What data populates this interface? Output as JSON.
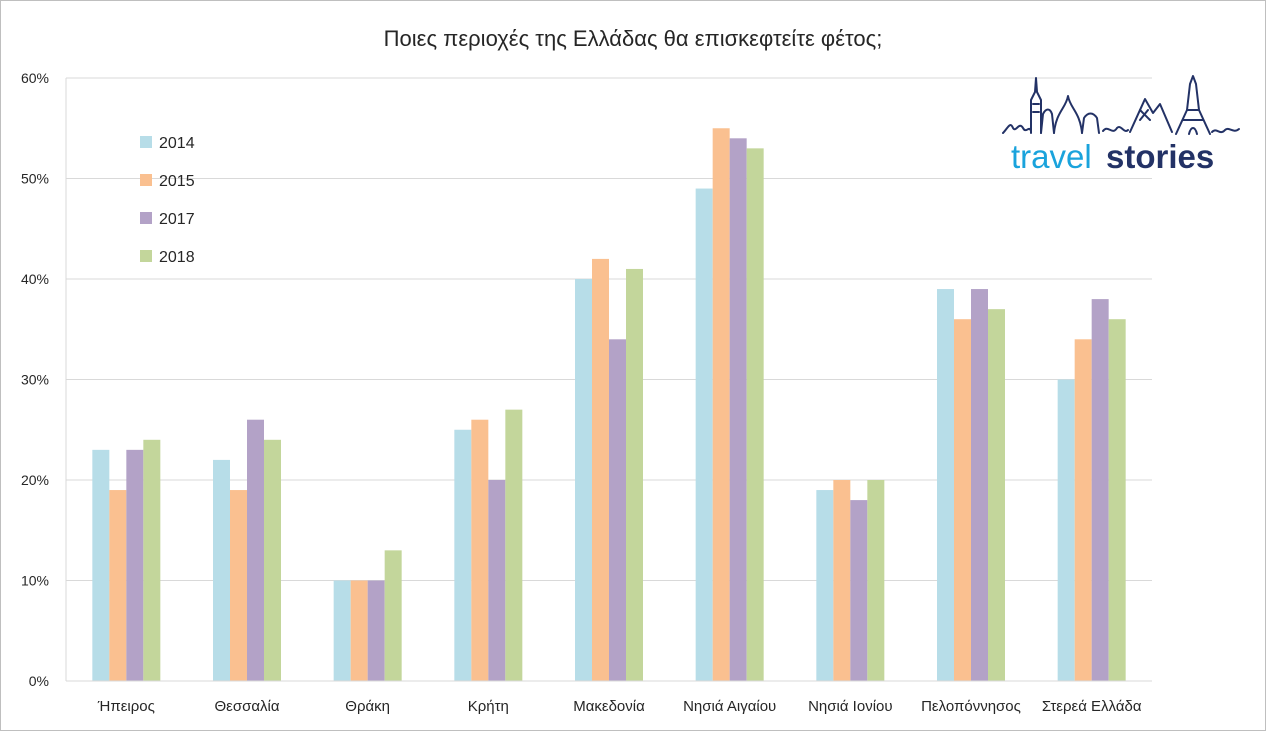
{
  "chart_data": {
    "type": "bar",
    "title": "Ποιες περιοχές της Ελλάδας θα επισκεφτείτε φέτος;",
    "xlabel": "",
    "ylabel": "",
    "ylim": [
      0,
      60
    ],
    "y_ticks": [
      "0%",
      "10%",
      "20%",
      "30%",
      "40%",
      "50%",
      "60%"
    ],
    "grid": true,
    "legend_position": "top-left",
    "categories": [
      "Ήπειρος",
      "Θεσσαλία",
      "Θράκη",
      "Κρήτη",
      "Μακεδονία",
      "Νησιά Αιγαίου",
      "Νησιά Ιονίου",
      "Πελοπόννησος",
      "Στερεά Ελλάδα"
    ],
    "series": [
      {
        "name": "2014",
        "color": "#b7dde8",
        "values": [
          23,
          22,
          10,
          25,
          40,
          49,
          19,
          39,
          30
        ]
      },
      {
        "name": "2015",
        "color": "#fac090",
        "values": [
          19,
          19,
          10,
          26,
          42,
          55,
          20,
          36,
          34
        ]
      },
      {
        "name": "2017",
        "color": "#b3a2c7",
        "values": [
          23,
          26,
          10,
          20,
          34,
          54,
          18,
          39,
          38
        ]
      },
      {
        "name": "2018",
        "color": "#c3d69b",
        "values": [
          24,
          24,
          13,
          27,
          41,
          53,
          20,
          37,
          36
        ]
      }
    ]
  },
  "logo": {
    "word1": "travel",
    "word2": "stories",
    "icon": "landmarks-skyline-icon"
  }
}
